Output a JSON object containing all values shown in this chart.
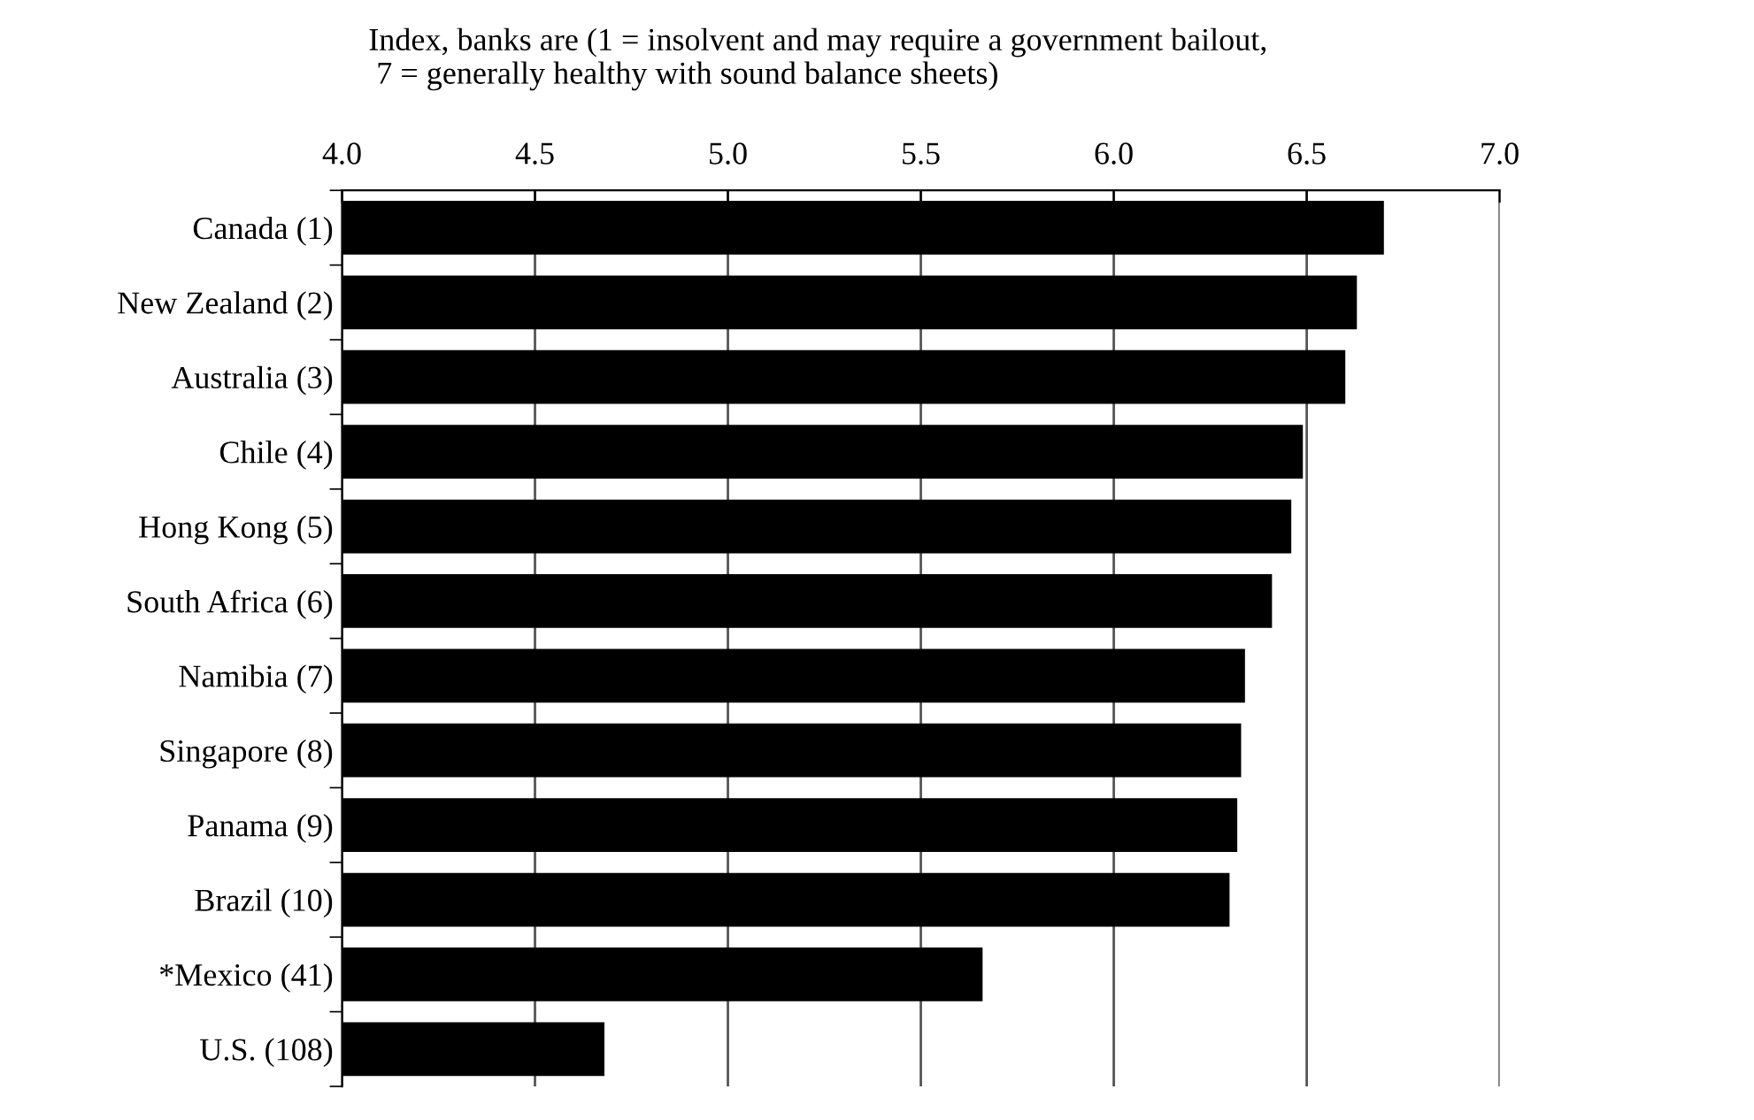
{
  "chart_data": {
    "type": "bar",
    "orientation": "horizontal",
    "title": "Index, banks are (1 = insolvent and may require a government bailout,\n 7 = generally healthy with sound balance sheets)",
    "categories": [
      "Canada (1)",
      "New Zealand (2)",
      "Australia (3)",
      "Chile (4)",
      "Hong Kong (5)",
      "South Africa (6)",
      "Namibia (7)",
      "Singapore (8)",
      "Panama (9)",
      "Brazil (10)",
      "*Mexico (41)",
      "U.S. (108)"
    ],
    "values": [
      6.7,
      6.63,
      6.6,
      6.49,
      6.46,
      6.41,
      6.34,
      6.33,
      6.32,
      6.3,
      5.66,
      4.68
    ],
    "color": "#000000",
    "xlim": [
      4.0,
      7.0
    ],
    "xticks": [
      {
        "value": 4.0,
        "label": "4.0"
      },
      {
        "value": 4.5,
        "label": "4.5"
      },
      {
        "value": 5.0,
        "label": "5.0"
      },
      {
        "value": 5.5,
        "label": "5.5"
      },
      {
        "value": 6.0,
        "label": "6.0"
      },
      {
        "value": 6.5,
        "label": "6.5"
      },
      {
        "value": 7.0,
        "label": "7.0"
      }
    ],
    "grid": "x"
  }
}
